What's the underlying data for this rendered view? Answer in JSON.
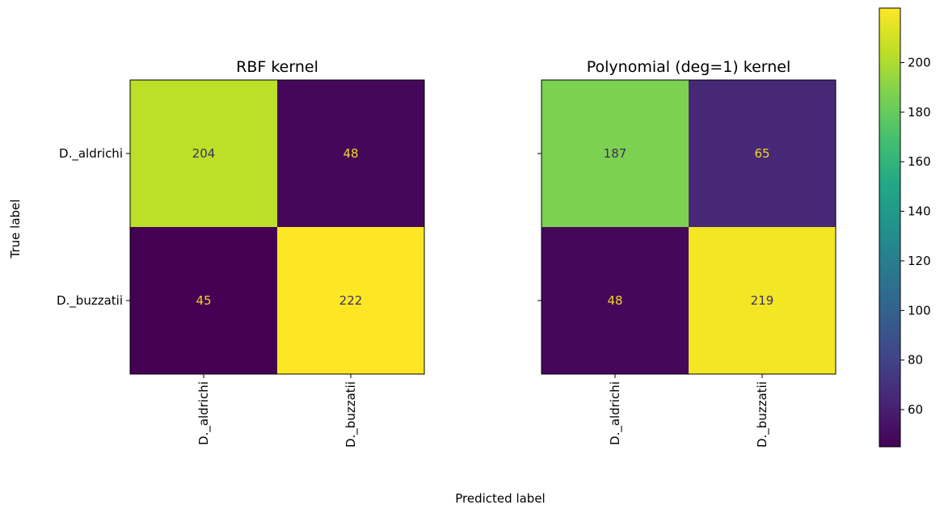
{
  "figure": {
    "xlabel": "Predicted label",
    "ylabel": "True label"
  },
  "chart_data": [
    {
      "type": "heatmap",
      "title": "RBF kernel",
      "xlabel": "Predicted label",
      "ylabel": "True label",
      "x_categories": [
        "D._aldrichi",
        "D._buzzatii"
      ],
      "y_categories": [
        "D._aldrichi",
        "D._buzzatii"
      ],
      "values": [
        [
          204,
          48
        ],
        [
          45,
          222
        ]
      ],
      "show_ytick_labels": true
    },
    {
      "type": "heatmap",
      "title": "Polynomial (deg=1) kernel",
      "xlabel": "Predicted label",
      "x_categories": [
        "D._aldrichi",
        "D._buzzatii"
      ],
      "y_categories": [
        "D._aldrichi",
        "D._buzzatii"
      ],
      "values": [
        [
          187,
          65
        ],
        [
          48,
          219
        ]
      ],
      "show_ytick_labels": false
    }
  ],
  "colorbar": {
    "colormap": "viridis",
    "vmin": 45,
    "vmax": 222,
    "ticks": [
      60,
      80,
      100,
      120,
      140,
      160,
      180,
      200
    ]
  },
  "colors": {
    "low_text": "#f4d528",
    "high_text": "#3b2f63"
  }
}
